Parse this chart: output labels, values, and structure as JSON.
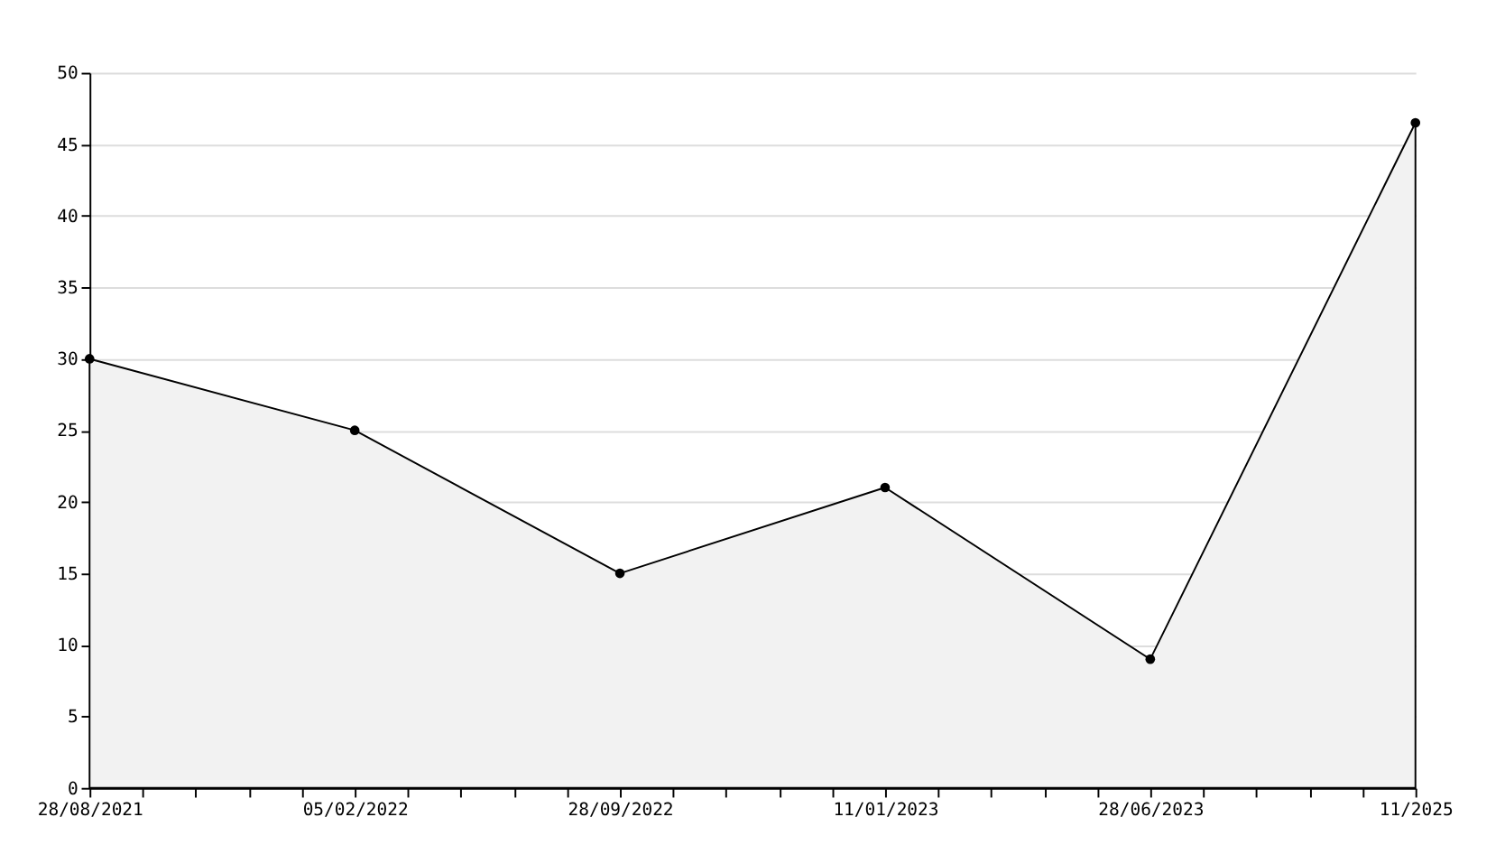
{
  "chart_data": {
    "type": "area",
    "categories": [
      "28/08/2021",
      "05/02/2022",
      "28/09/2022",
      "11/01/2023",
      "28/06/2023",
      "11/2025"
    ],
    "series": [
      {
        "color": "#000000",
        "values": [
          30,
          25,
          15,
          21,
          9,
          46.5
        ]
      }
    ],
    "ylim": [
      0,
      50
    ],
    "yticks": [
      0,
      5,
      10,
      15,
      20,
      25,
      30,
      35,
      40,
      45,
      50
    ],
    "grid": "y",
    "marker": "circle",
    "line_style": "solid"
  }
}
